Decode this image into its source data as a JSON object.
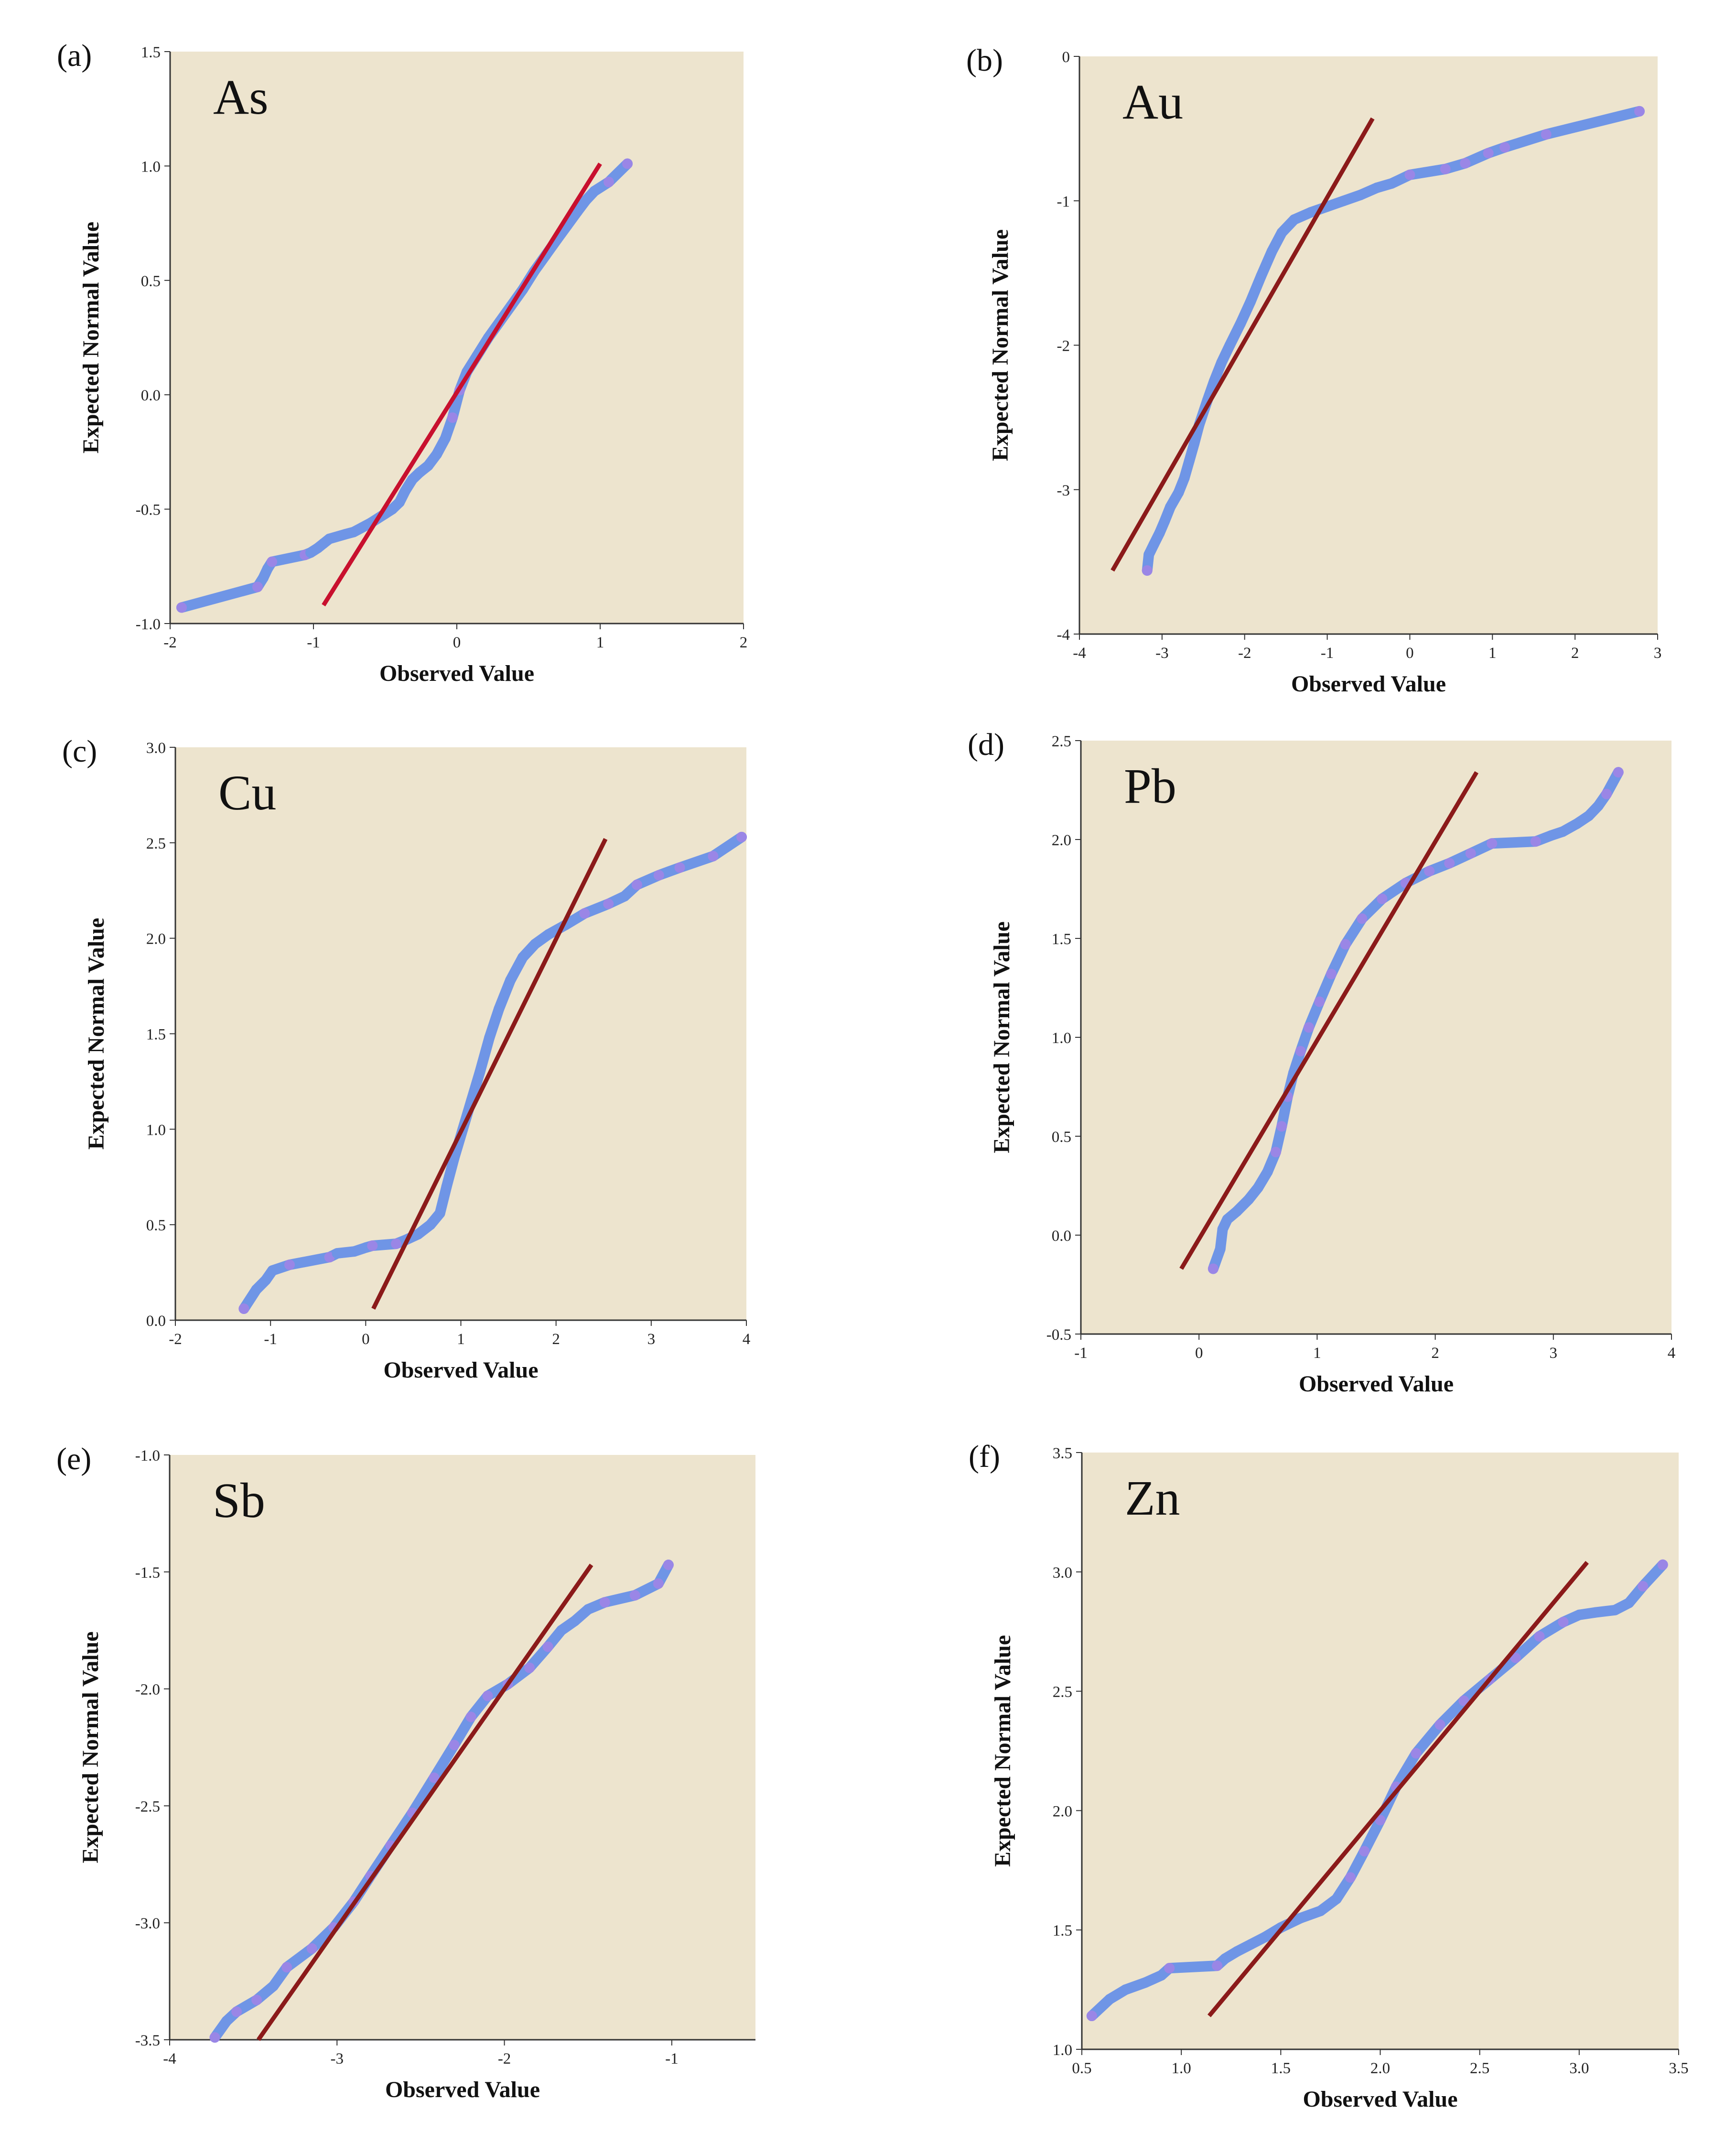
{
  "colors": {
    "plot_background": "#EDE4CE",
    "reference_line_red": "#C8102E",
    "reference_line_darkred": "#8B1A1A",
    "dense_points": "#6F95E6",
    "sparse_points": "#9A86E6"
  },
  "chart_data": [
    {
      "type": "scatter",
      "panel": "(a)",
      "title": "As",
      "xlabel": "Observed Value",
      "ylabel": "Expected Normal Value",
      "xlim": [
        -2,
        2
      ],
      "ylim": [
        -1.0,
        1.5
      ],
      "xticks": [
        "-2",
        "-1",
        "0",
        "1",
        "2"
      ],
      "yticks": [
        "-1.0",
        "-0.5",
        "0.0",
        "0.5",
        "1.0",
        "1.5"
      ],
      "line": {
        "x": [
          -0.93,
          1.0
        ],
        "y": [
          -0.92,
          1.01
        ],
        "color": "#C8102E"
      },
      "points": [
        [
          -1.92,
          -0.93
        ],
        [
          -1.39,
          -0.84
        ],
        [
          -1.35,
          -0.8
        ],
        [
          -1.32,
          -0.76
        ],
        [
          -1.29,
          -0.73
        ],
        [
          -1.06,
          -0.7
        ],
        [
          -1.02,
          -0.69
        ],
        [
          -0.97,
          -0.67
        ],
        [
          -0.93,
          -0.65
        ],
        [
          -0.89,
          -0.63
        ],
        [
          -0.78,
          -0.61
        ],
        [
          -0.72,
          -0.6
        ],
        [
          -0.66,
          -0.58
        ],
        [
          -0.6,
          -0.56
        ],
        [
          -0.55,
          -0.54
        ],
        [
          -0.5,
          -0.52
        ],
        [
          -0.45,
          -0.5
        ],
        [
          -0.4,
          -0.47
        ],
        [
          -0.36,
          -0.42
        ],
        [
          -0.31,
          -0.37
        ],
        [
          -0.26,
          -0.34
        ],
        [
          -0.2,
          -0.31
        ],
        [
          -0.14,
          -0.26
        ],
        [
          -0.08,
          -0.19
        ],
        [
          -0.03,
          -0.1
        ],
        [
          0.02,
          0.02
        ],
        [
          0.07,
          0.1
        ],
        [
          0.14,
          0.17
        ],
        [
          0.22,
          0.25
        ],
        [
          0.3,
          0.32
        ],
        [
          0.38,
          0.39
        ],
        [
          0.46,
          0.46
        ],
        [
          0.54,
          0.54
        ],
        [
          0.62,
          0.61
        ],
        [
          0.7,
          0.68
        ],
        [
          0.77,
          0.74
        ],
        [
          0.84,
          0.8
        ],
        [
          0.9,
          0.85
        ],
        [
          0.96,
          0.89
        ],
        [
          1.06,
          0.93
        ],
        [
          1.19,
          1.01
        ]
      ]
    },
    {
      "type": "scatter",
      "panel": "(b)",
      "title": "Au",
      "xlabel": "Observed Value",
      "ylabel": "Expected Normal Value",
      "xlim": [
        -4,
        3
      ],
      "ylim": [
        -4,
        0
      ],
      "xticks": [
        "-4",
        "-3",
        "-2",
        "-1",
        "0",
        "1",
        "2",
        "3"
      ],
      "yticks": [
        "-4",
        "-3",
        "-2",
        "-1",
        "0"
      ],
      "line": {
        "x": [
          -3.6,
          -0.45
        ],
        "y": [
          -3.56,
          -0.43
        ],
        "color": "#8B1A1A"
      },
      "points": [
        [
          -3.18,
          -3.56
        ],
        [
          -3.16,
          -3.45
        ],
        [
          -3.1,
          -3.38
        ],
        [
          -3.03,
          -3.3
        ],
        [
          -2.97,
          -3.22
        ],
        [
          -2.9,
          -3.12
        ],
        [
          -2.8,
          -3.02
        ],
        [
          -2.73,
          -2.92
        ],
        [
          -2.67,
          -2.8
        ],
        [
          -2.61,
          -2.68
        ],
        [
          -2.55,
          -2.55
        ],
        [
          -2.45,
          -2.38
        ],
        [
          -2.37,
          -2.25
        ],
        [
          -2.28,
          -2.12
        ],
        [
          -2.18,
          -2.0
        ],
        [
          -2.05,
          -1.85
        ],
        [
          -1.93,
          -1.7
        ],
        [
          -1.8,
          -1.52
        ],
        [
          -1.67,
          -1.35
        ],
        [
          -1.55,
          -1.22
        ],
        [
          -1.4,
          -1.13
        ],
        [
          -1.2,
          -1.08
        ],
        [
          -1.0,
          -1.04
        ],
        [
          -0.8,
          -1.0
        ],
        [
          -0.6,
          -0.96
        ],
        [
          -0.4,
          -0.91
        ],
        [
          -0.22,
          -0.88
        ],
        [
          0.0,
          -0.82
        ],
        [
          0.43,
          -0.78
        ],
        [
          0.67,
          -0.74
        ],
        [
          0.95,
          -0.67
        ],
        [
          1.15,
          -0.63
        ],
        [
          1.65,
          -0.54
        ],
        [
          2.78,
          -0.38
        ]
      ]
    },
    {
      "type": "scatter",
      "panel": "(c)",
      "title": "Cu",
      "xlabel": "Observed Value",
      "ylabel": "Expected Normal Value",
      "xlim": [
        -2,
        4
      ],
      "ylim": [
        0.0,
        3.0
      ],
      "xticks": [
        "-2",
        "-1",
        "0",
        "1",
        "2",
        "3",
        "4"
      ],
      "yticks": [
        "0.0",
        "0.5",
        "1.0",
        "1.5",
        "2.0",
        "2.5",
        "3.0"
      ],
      "line": {
        "x": [
          0.08,
          2.52
        ],
        "y": [
          0.06,
          2.52
        ],
        "color": "#8B1A1A"
      },
      "points": [
        [
          -1.28,
          0.06
        ],
        [
          -1.15,
          0.16
        ],
        [
          -1.05,
          0.21
        ],
        [
          -0.98,
          0.26
        ],
        [
          -0.8,
          0.29
        ],
        [
          -0.38,
          0.33
        ],
        [
          -0.3,
          0.35
        ],
        [
          -0.12,
          0.36
        ],
        [
          0.0,
          0.38
        ],
        [
          0.07,
          0.39
        ],
        [
          0.32,
          0.4
        ],
        [
          0.42,
          0.42
        ],
        [
          0.55,
          0.45
        ],
        [
          0.68,
          0.5
        ],
        [
          0.78,
          0.56
        ],
        [
          0.85,
          0.7
        ],
        [
          0.93,
          0.85
        ],
        [
          1.02,
          1.0
        ],
        [
          1.11,
          1.15
        ],
        [
          1.2,
          1.3
        ],
        [
          1.3,
          1.48
        ],
        [
          1.4,
          1.63
        ],
        [
          1.52,
          1.78
        ],
        [
          1.65,
          1.9
        ],
        [
          1.78,
          1.97
        ],
        [
          1.92,
          2.02
        ],
        [
          2.1,
          2.07
        ],
        [
          2.3,
          2.13
        ],
        [
          2.55,
          2.18
        ],
        [
          2.72,
          2.22
        ],
        [
          2.85,
          2.28
        ],
        [
          3.08,
          2.33
        ],
        [
          3.3,
          2.37
        ],
        [
          3.65,
          2.43
        ],
        [
          3.95,
          2.53
        ]
      ]
    },
    {
      "type": "scatter",
      "panel": "(d)",
      "title": "Pb",
      "xlabel": "Observed Value",
      "ylabel": "Expected Normal Value",
      "xlim": [
        -1,
        4
      ],
      "ylim": [
        -0.5,
        2.5
      ],
      "xticks": [
        "-1",
        "0",
        "1",
        "2",
        "3",
        "4"
      ],
      "yticks": [
        "-0.5",
        "0.0",
        "0.5",
        "1.0",
        "1.5",
        "2.0",
        "2.5"
      ],
      "line": {
        "x": [
          -0.15,
          2.35
        ],
        "y": [
          -0.17,
          2.34
        ],
        "color": "#8B1A1A"
      },
      "points": [
        [
          0.12,
          -0.17
        ],
        [
          0.18,
          -0.07
        ],
        [
          0.2,
          0.03
        ],
        [
          0.24,
          0.08
        ],
        [
          0.32,
          0.12
        ],
        [
          0.42,
          0.18
        ],
        [
          0.5,
          0.24
        ],
        [
          0.58,
          0.32
        ],
        [
          0.65,
          0.42
        ],
        [
          0.7,
          0.55
        ],
        [
          0.75,
          0.7
        ],
        [
          0.8,
          0.82
        ],
        [
          0.86,
          0.93
        ],
        [
          0.93,
          1.05
        ],
        [
          1.02,
          1.18
        ],
        [
          1.12,
          1.32
        ],
        [
          1.24,
          1.47
        ],
        [
          1.38,
          1.6
        ],
        [
          1.55,
          1.7
        ],
        [
          1.75,
          1.78
        ],
        [
          1.95,
          1.84
        ],
        [
          2.12,
          1.88
        ],
        [
          2.3,
          1.93
        ],
        [
          2.48,
          1.98
        ],
        [
          2.85,
          1.99
        ],
        [
          2.98,
          2.02
        ],
        [
          3.08,
          2.04
        ],
        [
          3.2,
          2.08
        ],
        [
          3.3,
          2.12
        ],
        [
          3.38,
          2.17
        ],
        [
          3.45,
          2.23
        ],
        [
          3.55,
          2.34
        ]
      ]
    },
    {
      "type": "scatter",
      "panel": "(e)",
      "title": "Sb",
      "xlabel": "Observed Value",
      "ylabel": "Expected Normal Value",
      "xlim": [
        -4,
        -0.5
      ],
      "ylim": [
        -3.5,
        -1.0
      ],
      "xticks": [
        "-4",
        "-3",
        "-2",
        "-1"
      ],
      "yticks": [
        "-3.5",
        "-3.0",
        "-2.5",
        "-2.0",
        "-1.5",
        "-1.0"
      ],
      "line": {
        "x": [
          -3.47,
          -1.48
        ],
        "y": [
          -3.5,
          -1.47
        ],
        "color": "#8B1A1A"
      },
      "points": [
        [
          -3.73,
          -3.49
        ],
        [
          -3.66,
          -3.42
        ],
        [
          -3.6,
          -3.38
        ],
        [
          -3.48,
          -3.33
        ],
        [
          -3.38,
          -3.27
        ],
        [
          -3.3,
          -3.19
        ],
        [
          -3.15,
          -3.11
        ],
        [
          -3.02,
          -3.02
        ],
        [
          -2.9,
          -2.91
        ],
        [
          -2.8,
          -2.8
        ],
        [
          -2.68,
          -2.67
        ],
        [
          -2.55,
          -2.53
        ],
        [
          -2.42,
          -2.38
        ],
        [
          -2.3,
          -2.24
        ],
        [
          -2.2,
          -2.12
        ],
        [
          -2.1,
          -2.03
        ],
        [
          -1.98,
          -1.98
        ],
        [
          -1.85,
          -1.91
        ],
        [
          -1.74,
          -1.82
        ],
        [
          -1.66,
          -1.75
        ],
        [
          -1.58,
          -1.71
        ],
        [
          -1.5,
          -1.66
        ],
        [
          -1.4,
          -1.63
        ],
        [
          -1.22,
          -1.6
        ],
        [
          -1.08,
          -1.55
        ],
        [
          -1.02,
          -1.47
        ]
      ]
    },
    {
      "type": "scatter",
      "panel": "(f)",
      "title": "Zn",
      "xlabel": "Observed Value",
      "ylabel": "Expected Normal Value",
      "xlim": [
        0.5,
        3.5
      ],
      "ylim": [
        1.0,
        3.5
      ],
      "xticks": [
        "0.5",
        "1.0",
        "1.5",
        "2.0",
        "2.5",
        "3.0",
        "3.5"
      ],
      "yticks": [
        "1.0",
        "1.5",
        "2.0",
        "2.5",
        "3.0",
        "3.5"
      ],
      "line": {
        "x": [
          1.14,
          3.04
        ],
        "y": [
          1.14,
          3.04
        ],
        "color": "#8B1A1A"
      },
      "points": [
        [
          0.55,
          1.14
        ],
        [
          0.64,
          1.21
        ],
        [
          0.72,
          1.25
        ],
        [
          0.82,
          1.28
        ],
        [
          0.9,
          1.31
        ],
        [
          0.94,
          1.34
        ],
        [
          1.18,
          1.35
        ],
        [
          1.22,
          1.38
        ],
        [
          1.28,
          1.41
        ],
        [
          1.35,
          1.44
        ],
        [
          1.42,
          1.47
        ],
        [
          1.5,
          1.51
        ],
        [
          1.6,
          1.55
        ],
        [
          1.7,
          1.58
        ],
        [
          1.78,
          1.63
        ],
        [
          1.85,
          1.72
        ],
        [
          1.92,
          1.83
        ],
        [
          2.0,
          1.96
        ],
        [
          2.08,
          2.1
        ],
        [
          2.18,
          2.24
        ],
        [
          2.3,
          2.36
        ],
        [
          2.42,
          2.46
        ],
        [
          2.55,
          2.55
        ],
        [
          2.68,
          2.64
        ],
        [
          2.8,
          2.73
        ],
        [
          2.92,
          2.79
        ],
        [
          3.0,
          2.82
        ],
        [
          3.08,
          2.83
        ],
        [
          3.18,
          2.84
        ],
        [
          3.25,
          2.87
        ],
        [
          3.32,
          2.94
        ],
        [
          3.42,
          3.03
        ]
      ]
    }
  ]
}
